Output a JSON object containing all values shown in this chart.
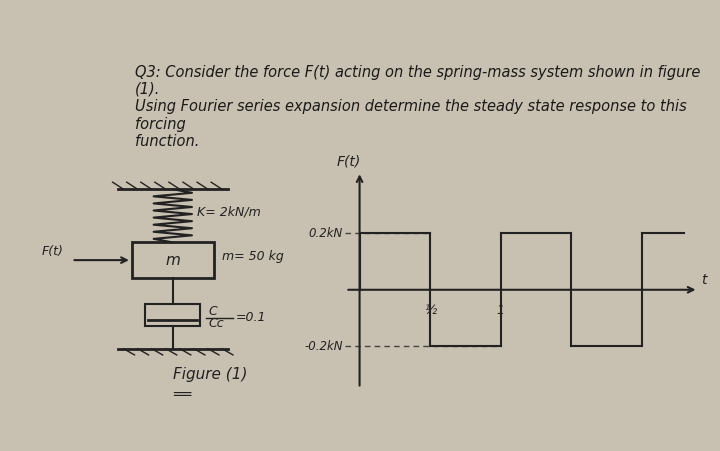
{
  "bg_color": "#c8c0b0",
  "text_color": "#1a1a1a",
  "title_text": "Q3: Consider the force F(t) acting on the spring-mass system shown in figure (1).\nUsing Fourier series expansion determine the steady state response to this forcing\nfunction.",
  "title_fontsize": 10.5,
  "spring_label": "K= 2kN/m",
  "mass_label": "m",
  "mass_label2": "m= 50 kg",
  "damper_label": "C\n— =0.1\nCc",
  "force_label": "F(t)",
  "figure_label": "Figure (1)",
  "graph_ylabel": "F(t)",
  "graph_y_pos": "0.2kN",
  "graph_y_neg": "-0.2kN",
  "graph_x_half": "½",
  "graph_x_one": "1",
  "graph_t_label": "t"
}
